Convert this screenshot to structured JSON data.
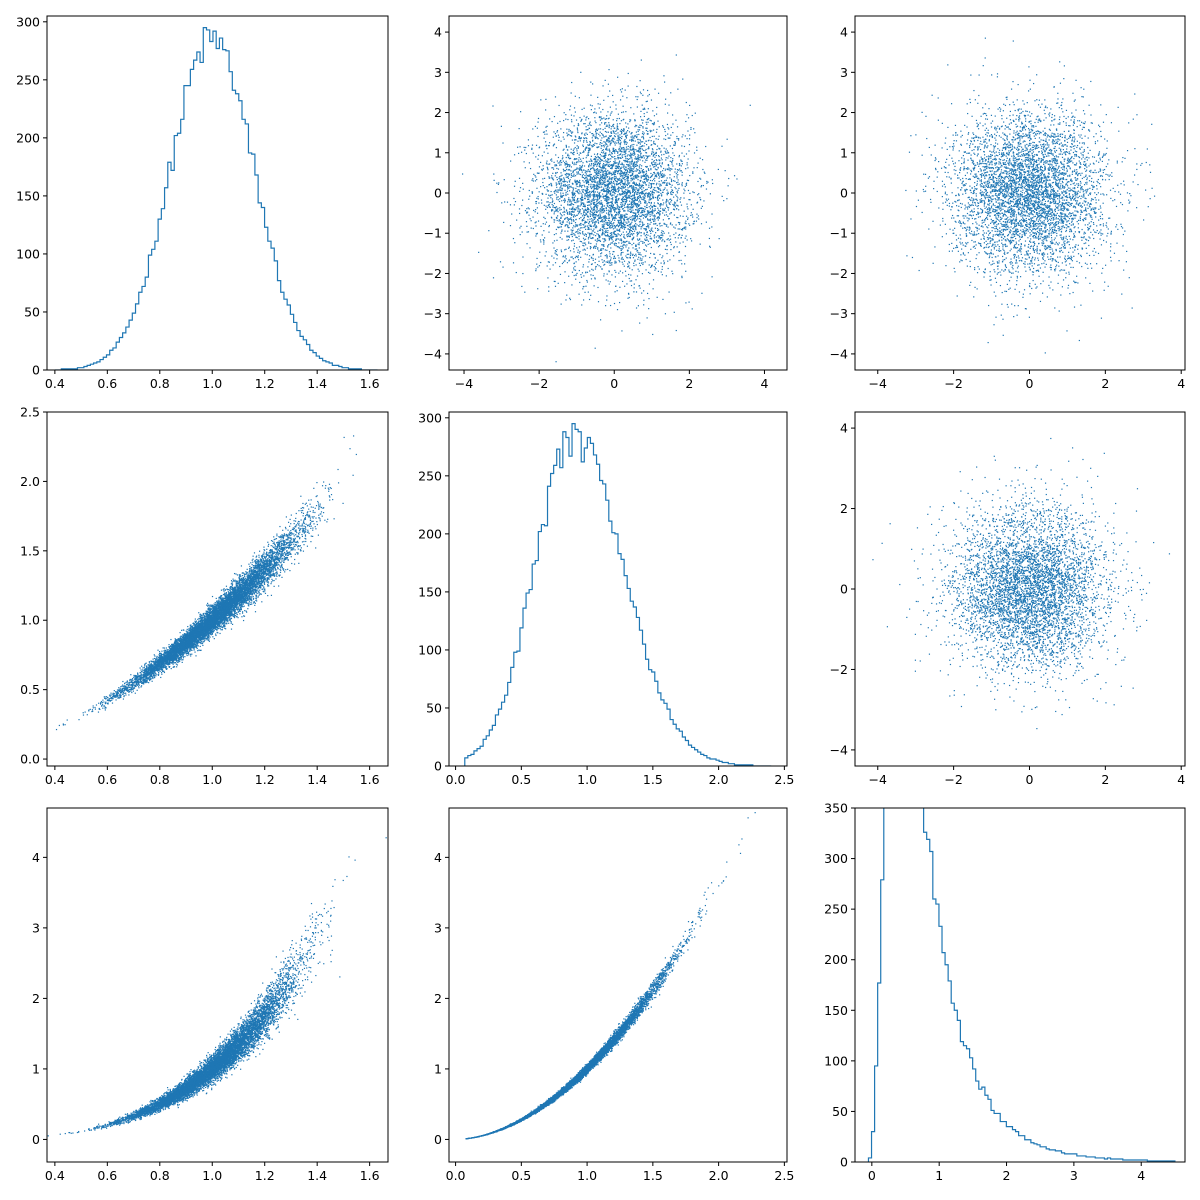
{
  "figure": {
    "title": "",
    "series_color": "#1f77b4"
  },
  "chart_data": [
    {
      "id": "p00",
      "row": 0,
      "col": 0,
      "type": "step-histogram",
      "title": "",
      "xlabel": "",
      "ylabel": "",
      "xlim": [
        0.37,
        1.67
      ],
      "ylim": [
        0,
        305
      ],
      "xticks": [
        0.4,
        0.6,
        0.8,
        1.0,
        1.2,
        1.4,
        1.6
      ],
      "yticks": [
        0,
        50,
        100,
        150,
        200,
        250,
        300
      ],
      "distribution": {
        "kind": "normal",
        "mean": 1.0,
        "sd": 0.16,
        "peak": 285
      },
      "bins": {
        "start": 0.4,
        "end": 1.63,
        "count": 100
      },
      "grid": false
    },
    {
      "id": "p01",
      "row": 0,
      "col": 1,
      "type": "scatter",
      "title": "",
      "xlabel": "",
      "ylabel": "",
      "xlim": [
        -4.4,
        4.6
      ],
      "ylim": [
        -4.4,
        4.4
      ],
      "xticks": [
        -4,
        -2,
        0,
        2,
        4
      ],
      "yticks": [
        -4,
        -3,
        -2,
        -1,
        0,
        1,
        2,
        3,
        4
      ],
      "points": {
        "n": 5000,
        "x_distribution": "normal(0,1)",
        "y_distribution": "normal(0,1)"
      },
      "grid": false
    },
    {
      "id": "p02",
      "row": 0,
      "col": 2,
      "type": "scatter",
      "title": "",
      "xlabel": "",
      "ylabel": "",
      "xlim": [
        -4.6,
        4.1
      ],
      "ylim": [
        -4.4,
        4.4
      ],
      "xticks": [
        -4,
        -2,
        0,
        2,
        4
      ],
      "yticks": [
        -4,
        -3,
        -2,
        -1,
        0,
        1,
        2,
        3,
        4
      ],
      "points": {
        "n": 5000,
        "x_distribution": "normal(0,1)",
        "y_distribution": "normal(0,1)"
      },
      "grid": false
    },
    {
      "id": "p10",
      "row": 1,
      "col": 0,
      "type": "scatter",
      "title": "",
      "xlabel": "",
      "ylabel": "",
      "xlim": [
        0.37,
        1.67
      ],
      "ylim": [
        -0.05,
        2.5
      ],
      "xticks": [
        0.4,
        0.6,
        0.8,
        1.0,
        1.2,
        1.4,
        1.6
      ],
      "yticks": [
        0.0,
        0.5,
        1.0,
        1.5,
        2.0,
        2.5
      ],
      "points": {
        "n": 9000,
        "relation": "y = x^1.7 with multiplicative noise",
        "x_distribution": "normal(1.0,0.16)"
      },
      "grid": false
    },
    {
      "id": "p11",
      "row": 1,
      "col": 1,
      "type": "step-histogram",
      "title": "",
      "xlabel": "",
      "ylabel": "",
      "xlim": [
        -0.05,
        2.52
      ],
      "ylim": [
        0,
        305
      ],
      "xticks": [
        0.0,
        0.5,
        1.0,
        1.5,
        2.0,
        2.5
      ],
      "yticks": [
        0,
        50,
        100,
        150,
        200,
        250,
        300
      ],
      "distribution": {
        "kind": "right-skewed",
        "mode": 0.9,
        "peak": 282
      },
      "bins": {
        "start": 0.07,
        "end": 2.4,
        "count": 100
      },
      "grid": false
    },
    {
      "id": "p12",
      "row": 1,
      "col": 2,
      "type": "scatter",
      "title": "",
      "xlabel": "",
      "ylabel": "",
      "xlim": [
        -4.6,
        4.1
      ],
      "ylim": [
        -4.4,
        4.4
      ],
      "xticks": [
        -4,
        -2,
        0,
        2,
        4
      ],
      "yticks": [
        -4,
        -2,
        0,
        2,
        4
      ],
      "points": {
        "n": 5000,
        "x_distribution": "normal(0,1)",
        "y_distribution": "normal(0,1)"
      },
      "grid": false
    },
    {
      "id": "p20",
      "row": 2,
      "col": 0,
      "type": "scatter",
      "title": "",
      "xlabel": "",
      "ylabel": "",
      "xlim": [
        0.37,
        1.67
      ],
      "ylim": [
        -0.32,
        4.7
      ],
      "xticks": [
        0.4,
        0.6,
        0.8,
        1.0,
        1.2,
        1.4,
        1.6
      ],
      "yticks": [
        0,
        1,
        2,
        3,
        4
      ],
      "points": {
        "n": 9000,
        "relation": "y = x^3.1 with multiplicative noise",
        "x_distribution": "normal(1.0,0.16)"
      },
      "grid": false
    },
    {
      "id": "p21",
      "row": 2,
      "col": 1,
      "type": "scatter",
      "title": "",
      "xlabel": "",
      "ylabel": "",
      "xlim": [
        -0.05,
        2.52
      ],
      "ylim": [
        -0.32,
        4.7
      ],
      "xticks": [
        0.0,
        0.5,
        1.0,
        1.5,
        2.0,
        2.5
      ],
      "yticks": [
        0,
        1,
        2,
        3,
        4
      ],
      "points": {
        "n": 9000,
        "relation": "y = x^1.85 with small noise",
        "x_distribution": "right-skewed mode 0.9"
      },
      "grid": false
    },
    {
      "id": "p22",
      "row": 2,
      "col": 2,
      "type": "step-histogram",
      "title": "",
      "xlabel": "",
      "ylabel": "",
      "xlim": [
        -0.25,
        4.65
      ],
      "ylim": [
        0,
        350
      ],
      "xticks": [
        0,
        1,
        2,
        3,
        4
      ],
      "yticks": [
        0,
        50,
        100,
        150,
        200,
        250,
        300,
        350
      ],
      "distribution": {
        "kind": "lognormal-like",
        "mode": 0.45,
        "peak": 335
      },
      "bins": {
        "start": -0.05,
        "end": 4.5,
        "count": 100
      },
      "grid": false
    }
  ]
}
